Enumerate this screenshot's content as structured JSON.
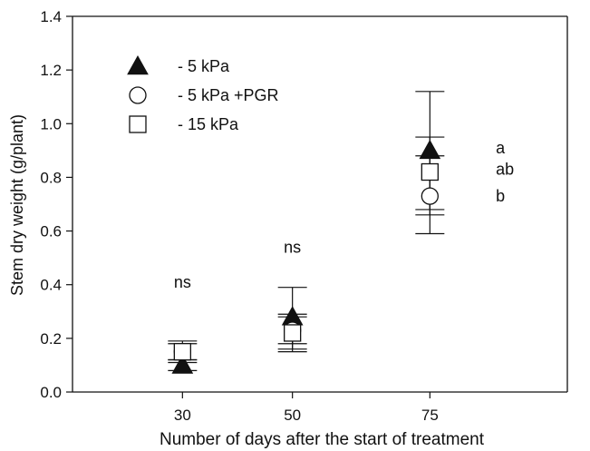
{
  "chart_data": {
    "type": "scatter",
    "title": "",
    "xlabel": "Number  of days after the start of  treatment",
    "ylabel": "Stem dry weight (g/plant)",
    "categories": [
      "30",
      "50",
      "75"
    ],
    "x_positions": [
      30,
      50,
      75
    ],
    "xlim": [
      10,
      100
    ],
    "ylim": [
      0.0,
      1.4
    ],
    "yticks": [
      0.0,
      0.2,
      0.4,
      0.6,
      0.8,
      1.0,
      1.2,
      1.4
    ],
    "ytick_labels": [
      "0.0",
      "0.2",
      "0.4",
      "0.6",
      "0.8",
      "1.0",
      "1.2",
      "1.4"
    ],
    "grid": false,
    "legend_position": "top-left",
    "series": [
      {
        "name": "- 5 kPa",
        "marker": "filled-triangle",
        "values": [
          0.1,
          0.28,
          0.9
        ],
        "err_low": [
          0.08,
          0.15,
          0.66
        ],
        "err_high": [
          0.12,
          0.39,
          1.12
        ]
      },
      {
        "name": "- 5 kPa +PGR",
        "marker": "open-circle",
        "values": [
          0.15,
          0.23,
          0.73
        ],
        "err_low": [
          0.12,
          0.18,
          0.59
        ],
        "err_high": [
          0.19,
          0.28,
          0.88
        ]
      },
      {
        "name": "- 15 kPa",
        "marker": "open-square",
        "values": [
          0.15,
          0.22,
          0.82
        ],
        "err_low": [
          0.11,
          0.16,
          0.68
        ],
        "err_high": [
          0.18,
          0.29,
          0.95
        ]
      }
    ],
    "annotations": [
      {
        "text": "ns",
        "x": 30,
        "y": 0.41
      },
      {
        "text": "ns",
        "x": 50,
        "y": 0.54
      },
      {
        "text": "a",
        "x": 87,
        "y": 0.91
      },
      {
        "text": "ab",
        "x": 87,
        "y": 0.83
      },
      {
        "text": "b",
        "x": 87,
        "y": 0.73
      }
    ]
  }
}
